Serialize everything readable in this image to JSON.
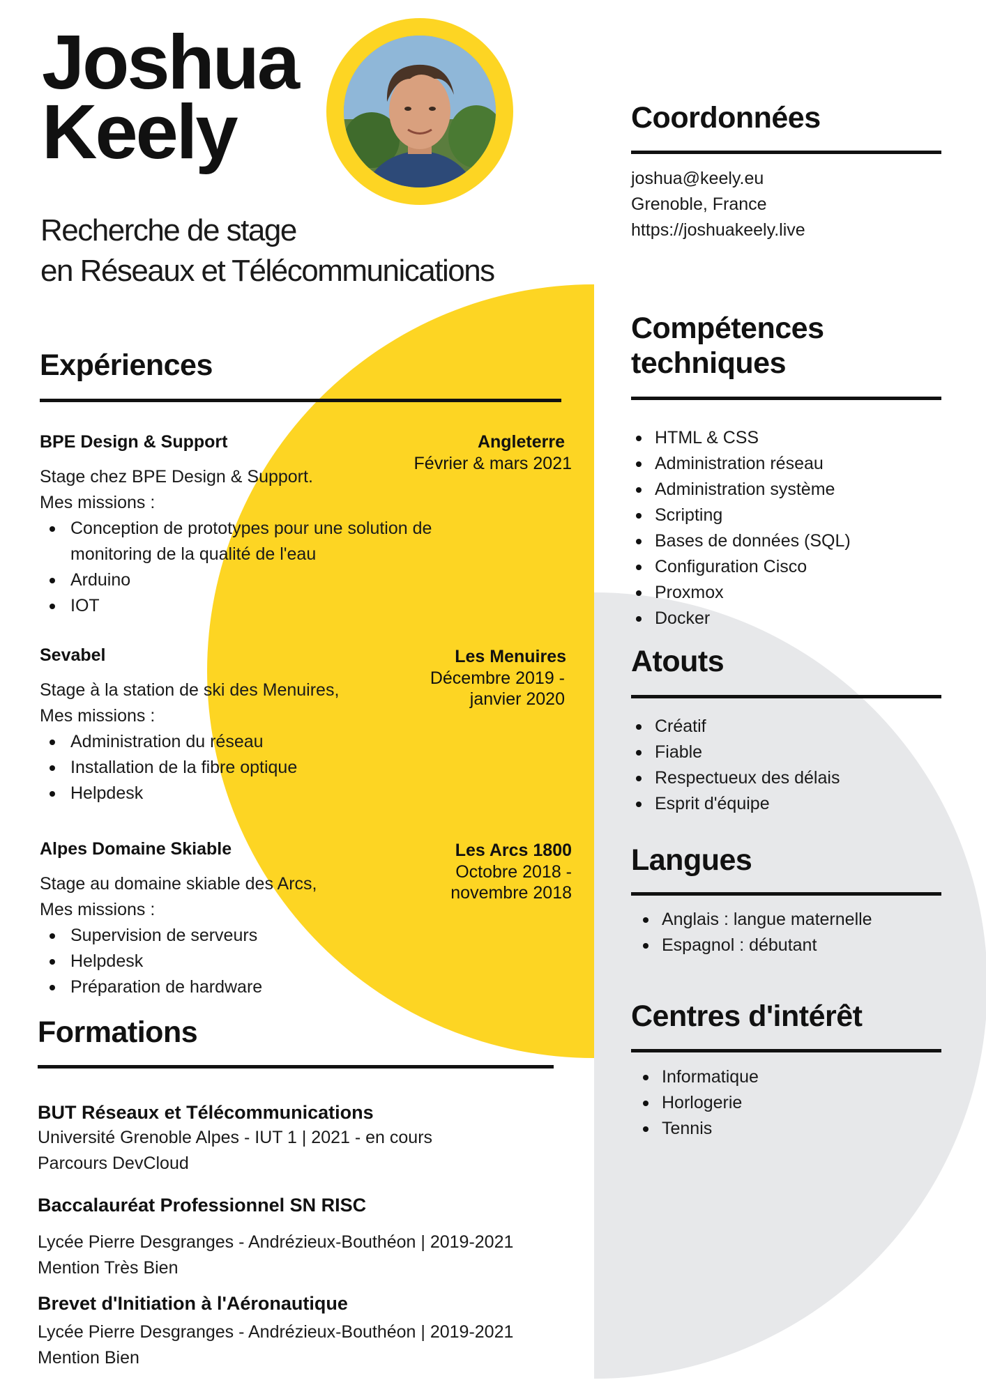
{
  "header": {
    "first_name": "Joshua",
    "last_name": "Keely",
    "tagline_line1": "Recherche de stage",
    "tagline_line2": "en Réseaux et Télécommunications"
  },
  "colors": {
    "accent": "#FDD523",
    "secondary": "#E7E8EA",
    "text": "#111111"
  },
  "experiences": {
    "title": "Expériences",
    "jobs": [
      {
        "company": "BPE Design & Support",
        "place": "Angleterre",
        "date_line1": "Février & mars 2021",
        "date_line2": "",
        "desc_line1": "Stage chez BPE Design & Support.",
        "desc_line2": "Mes missions :",
        "missions": [
          "Conception de prototypes pour une solution de",
          "monitoring de la qualité de l'eau",
          "Arduino",
          "IOT"
        ]
      },
      {
        "company": "Sevabel",
        "place": "Les Menuires",
        "date_line1": "Décembre 2019 -",
        "date_line2": "janvier 2020",
        "desc_line1": "Stage à la station de ski des Menuires,",
        "desc_line2": "Mes missions :",
        "missions": [
          "Administration du réseau",
          "Installation de la fibre optique",
          "Helpdesk"
        ]
      },
      {
        "company": "Alpes Domaine Skiable",
        "place": "Les Arcs 1800",
        "date_line1": "Octobre 2018 -",
        "date_line2": "novembre 2018",
        "desc_line1": "Stage au domaine skiable des Arcs,",
        "desc_line2": "Mes missions :",
        "missions": [
          "Supervision de serveurs",
          "Helpdesk",
          "Préparation de hardware"
        ]
      }
    ]
  },
  "formations": {
    "title": "Formations",
    "items": [
      {
        "title": "BUT Réseaux et Télécommunications",
        "line1": "Université Grenoble Alpes - IUT 1 | 2021 - en cours",
        "line2": "Parcours DevCloud"
      },
      {
        "title": "Baccalauréat  Professionnel SN RISC",
        "line1": "Lycée Pierre Desgranges  - Andrézieux-Bouthéon | 2019-2021",
        "line2": "Mention Très Bien"
      },
      {
        "title": "Brevet d'Initiation à l'Aéronautique",
        "line1": "Lycée Pierre Desgranges  - Andrézieux-Bouthéon | 2019-2021",
        "line2": "Mention Bien"
      }
    ]
  },
  "contact": {
    "title": "Coordonnées",
    "email": "joshua@keely.eu",
    "city": "Grenoble, France",
    "website": "https://joshuakeely.live"
  },
  "skills": {
    "title_line1": "Compétences",
    "title_line2": "techniques",
    "items": [
      "HTML & CSS",
      "Administration  réseau",
      "Administration système",
      "Scripting",
      "Bases de données (SQL)",
      "Configuration Cisco",
      "Proxmox",
      "Docker"
    ]
  },
  "assets": {
    "title": "Atouts",
    "items": [
      "Créatif",
      "Fiable",
      "Respectueux des délais",
      "Esprit d'équipe"
    ]
  },
  "languages": {
    "title": "Langues",
    "items": [
      "Anglais : langue maternelle",
      "Espagnol : débutant"
    ]
  },
  "interests": {
    "title": "Centres d'intérêt",
    "items": [
      "Informatique",
      "Horlogerie",
      "Tennis"
    ]
  }
}
